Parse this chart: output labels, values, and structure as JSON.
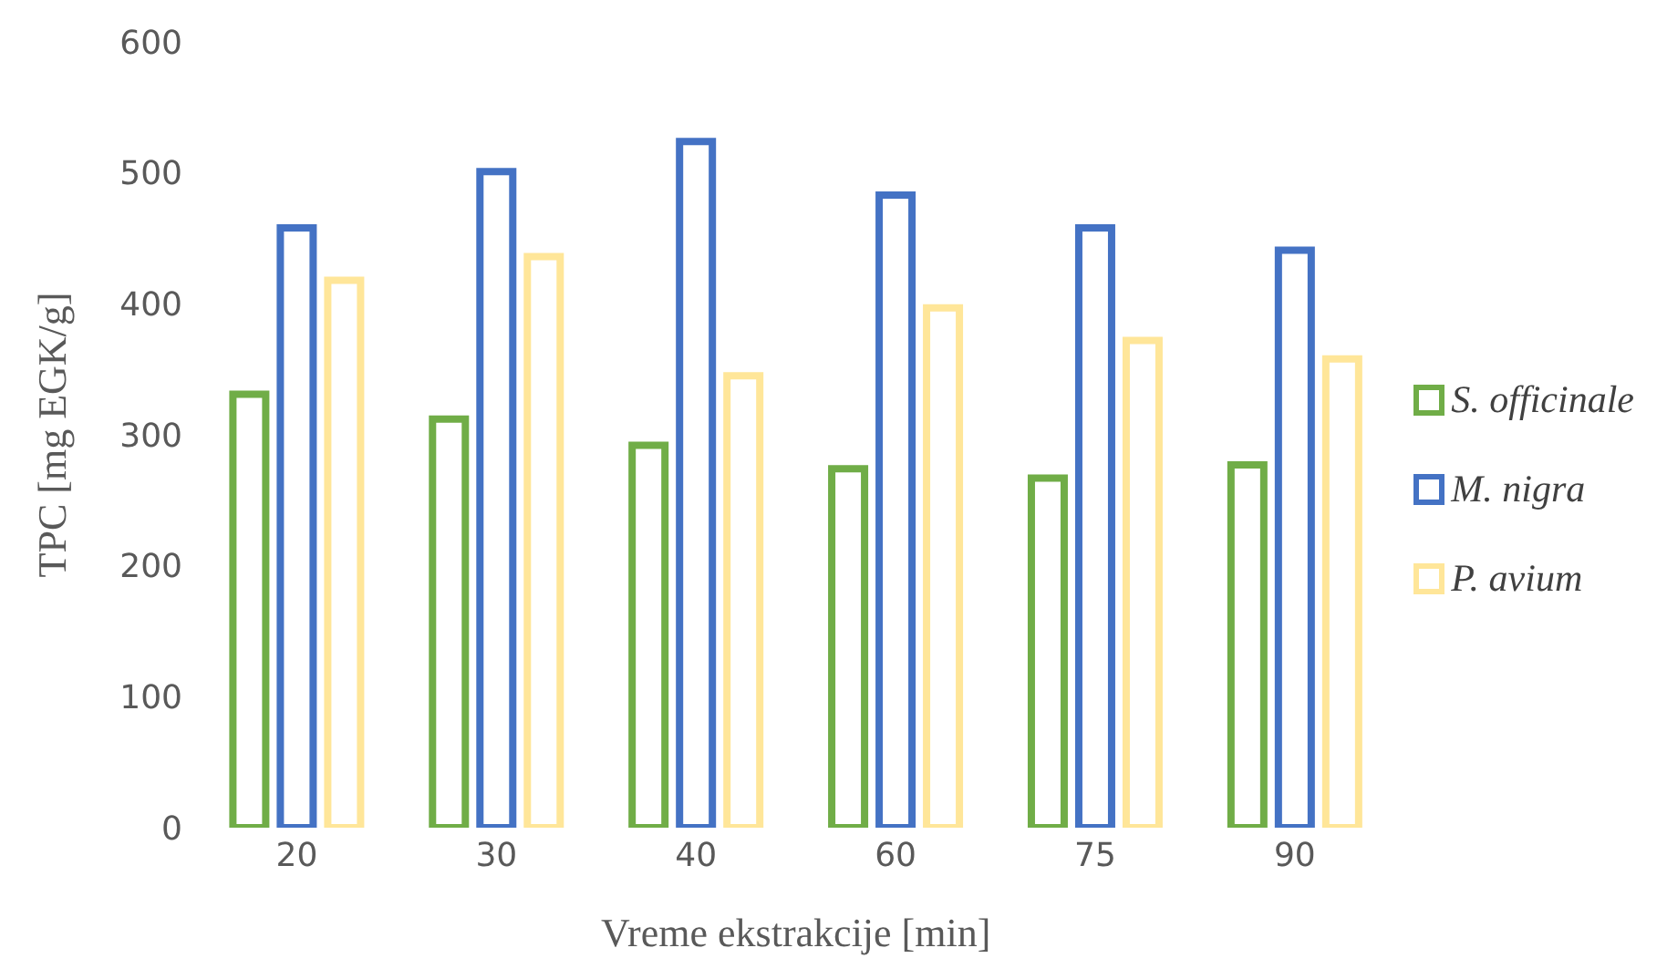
{
  "chart_data": {
    "type": "bar",
    "xlabel": "Vreme ekstrakcije [min]",
    "ylabel": "TPC [mg EGK/g]",
    "categories": [
      "20",
      "30",
      "40",
      "60",
      "75",
      "90"
    ],
    "series": [
      {
        "name": "S. officinale",
        "color": "#70ad47",
        "values": [
          331,
          312,
          292,
          274,
          267,
          277
        ]
      },
      {
        "name": "M. nigra",
        "color": "#4472c4",
        "values": [
          458,
          501,
          524,
          483,
          458,
          441
        ]
      },
      {
        "name": "P. avium",
        "color": "#ffe699",
        "values": [
          418,
          436,
          345,
          397,
          372,
          358
        ]
      }
    ],
    "ylim": [
      0,
      600
    ],
    "yticks": [
      0,
      100,
      200,
      300,
      400,
      500,
      600
    ],
    "grid": false,
    "legend": "right"
  }
}
